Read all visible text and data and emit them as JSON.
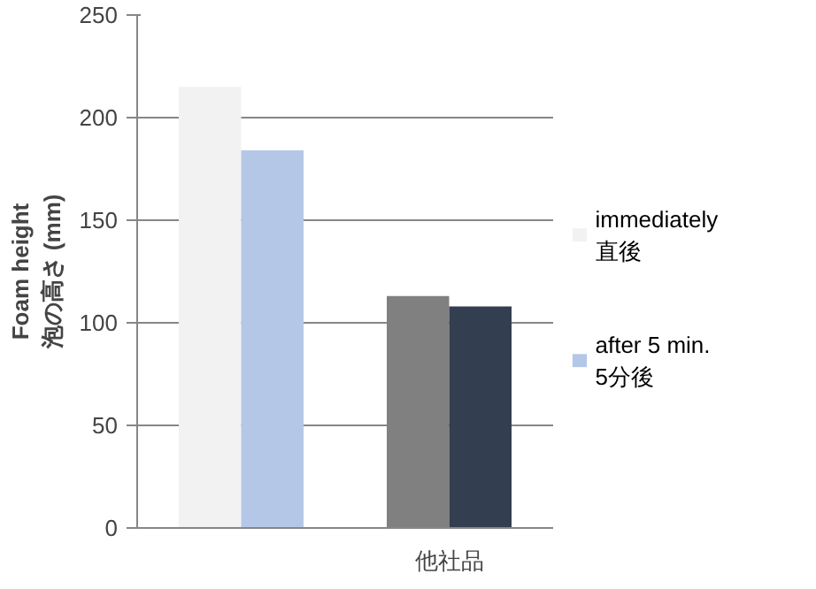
{
  "chart_data": {
    "type": "bar",
    "ylabel": "Foam height\n泡の高さ (mm)",
    "categories": [
      null,
      "他社品"
    ],
    "series": [
      {
        "name": "immediately\n直後",
        "color": "#f2f2f2",
        "colors": [
          "#f2f2f2",
          "#808080"
        ],
        "values": [
          215,
          113
        ]
      },
      {
        "name": "after 5 min.\n5分後",
        "color": "#b4c7e7",
        "colors": [
          "#b4c7e7",
          "#333f50"
        ],
        "values": [
          184,
          108
        ]
      }
    ],
    "ylim": [
      0,
      250
    ],
    "yticks": [
      0,
      50,
      100,
      150,
      200,
      250
    ],
    "grid": "y",
    "legend": "right"
  }
}
